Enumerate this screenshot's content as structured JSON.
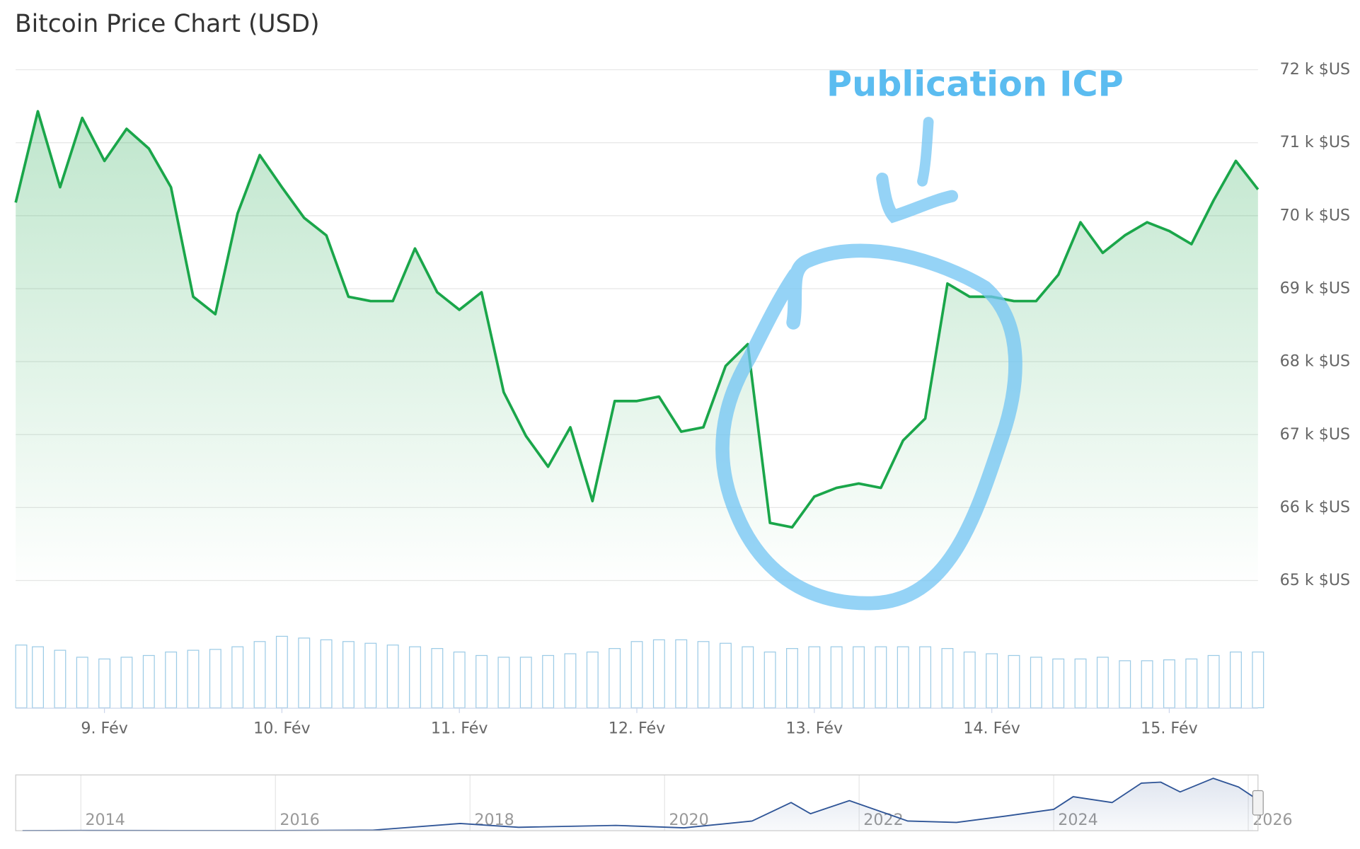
{
  "chart_data": [
    {
      "type": "line",
      "title": "Bitcoin Price Chart (USD)",
      "annotation": "Publication ICP",
      "color": "#1aa64a",
      "annotation_color": "#5bbcf0",
      "x": [
        8.5,
        8.625,
        8.75,
        8.875,
        9.0,
        9.125,
        9.25,
        9.375,
        9.5,
        9.625,
        9.75,
        9.875,
        10.0,
        10.125,
        10.25,
        10.375,
        10.5,
        10.625,
        10.75,
        10.875,
        11.0,
        11.125,
        11.25,
        11.375,
        11.5,
        11.625,
        11.75,
        11.875,
        12.0,
        12.125,
        12.25,
        12.375,
        12.5,
        12.625,
        12.75,
        12.875,
        13.0,
        13.125,
        13.25,
        13.375,
        13.5,
        13.625,
        13.75,
        13.875,
        14.0,
        14.125,
        14.25,
        14.375,
        14.5,
        14.625,
        14.75,
        14.875,
        15.0,
        15.125,
        15.25,
        15.375,
        15.5
      ],
      "values": [
        70.18,
        71.43,
        70.39,
        71.34,
        70.75,
        71.19,
        70.92,
        70.39,
        68.89,
        68.65,
        70.03,
        70.83,
        70.39,
        69.97,
        69.73,
        68.89,
        68.83,
        68.83,
        69.55,
        68.95,
        68.71,
        68.95,
        67.58,
        66.98,
        66.56,
        67.1,
        66.09,
        67.46,
        67.46,
        67.52,
        67.04,
        67.1,
        67.94,
        68.24,
        65.79,
        65.73,
        66.15,
        66.27,
        66.33,
        66.27,
        66.92,
        67.22,
        69.07,
        68.89,
        68.89,
        68.83,
        68.83,
        69.19,
        69.91,
        69.49,
        69.73,
        69.91,
        69.79,
        69.61,
        70.21,
        70.75,
        70.36
      ],
      "volume_color": "#9ccbe6",
      "volume_values": [
        72,
        70,
        66,
        58,
        56,
        58,
        60,
        64,
        66,
        67,
        70,
        76,
        82,
        80,
        78,
        76,
        74,
        72,
        70,
        68,
        64,
        60,
        58,
        58,
        60,
        62,
        64,
        68,
        76,
        78,
        78,
        76,
        74,
        70,
        64,
        68,
        70,
        70,
        70,
        70,
        70,
        70,
        68,
        64,
        62,
        60,
        58,
        56,
        56,
        58,
        54,
        54,
        55,
        56,
        60,
        64,
        64
      ],
      "xlim": [
        8.5,
        15.5
      ],
      "xticks": [
        {
          "value": 9,
          "label": "9. Fév"
        },
        {
          "value": 10,
          "label": "10. Fév"
        },
        {
          "value": 11,
          "label": "11. Fév"
        },
        {
          "value": 12,
          "label": "12. Fév"
        },
        {
          "value": 13,
          "label": "13. Fév"
        },
        {
          "value": 14,
          "label": "14. Fév"
        },
        {
          "value": 15,
          "label": "15. Fév"
        }
      ],
      "ylim": [
        65,
        72
      ],
      "yticks": [
        {
          "value": 65,
          "label": "65 k $US"
        },
        {
          "value": 66,
          "label": "66 k $US"
        },
        {
          "value": 67,
          "label": "67 k $US"
        },
        {
          "value": 68,
          "label": "68 k $US"
        },
        {
          "value": 69,
          "label": "69 k $US"
        },
        {
          "value": 70,
          "label": "70 k $US"
        },
        {
          "value": 71,
          "label": "71 k $US"
        },
        {
          "value": 72,
          "label": "72 k $US"
        }
      ],
      "grid": true
    },
    {
      "type": "line",
      "color": "#2f5597",
      "x": [
        2013.4,
        2014,
        2015,
        2016,
        2017,
        2017.9,
        2018.5,
        2019.5,
        2020.2,
        2020.9,
        2021.3,
        2021.5,
        2021.9,
        2022.5,
        2023,
        2023.5,
        2024,
        2024.2,
        2024.6,
        2024.9,
        2025.1,
        2025.3,
        2025.64,
        2025.9,
        2026.05
      ],
      "values": [
        0.1,
        0.6,
        0.3,
        0.4,
        1,
        15,
        7,
        11,
        6,
        20,
        58,
        35,
        62,
        20,
        17,
        30,
        44,
        70,
        58,
        98,
        100,
        80,
        108,
        90,
        70
      ],
      "xlim": [
        2013.33,
        2026.1
      ],
      "ylim": [
        0,
        115
      ],
      "xticks": [
        2014,
        2016,
        2018,
        2020,
        2022,
        2024,
        2026
      ]
    }
  ]
}
